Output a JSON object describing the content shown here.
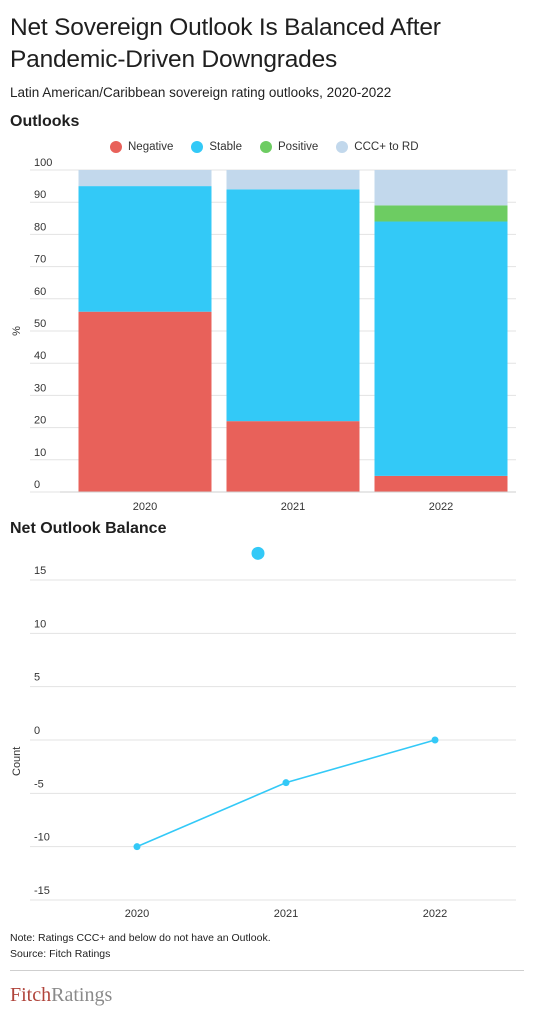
{
  "title": "Net Sovereign Outlook Is Balanced After Pandemic-Driven Downgrades",
  "subtitle": "Latin American/Caribbean sovereign rating outlooks, 2020-2022",
  "outlooks_title": "Outlooks",
  "balance_title": "Net Outlook Balance",
  "legend": [
    {
      "label": "Negative",
      "color": "#e8615a"
    },
    {
      "label": "Stable",
      "color": "#33c9f7"
    },
    {
      "label": "Positive",
      "color": "#6dcc62"
    },
    {
      "label": "CCC+ to RD",
      "color": "#c2d8ec"
    }
  ],
  "notes": {
    "note": "Note: Ratings CCC+ and below do not have an Outlook.",
    "source": "Source: Fitch Ratings"
  },
  "logo": {
    "part1": "Fitch",
    "part2": "Ratings"
  },
  "chart_data": [
    {
      "type": "bar",
      "stacked": true,
      "title": "Outlooks",
      "ylabel": "%",
      "xlabel": "",
      "ylim": [
        0,
        100
      ],
      "yticks": [
        0,
        10,
        20,
        30,
        40,
        50,
        60,
        70,
        80,
        90,
        100
      ],
      "grid": true,
      "legend_position": "top",
      "categories": [
        "2020",
        "2021",
        "2022"
      ],
      "series": [
        {
          "name": "Negative",
          "color": "#e8615a",
          "values": [
            56,
            22,
            5
          ]
        },
        {
          "name": "Stable",
          "color": "#33c9f7",
          "values": [
            39,
            72,
            79
          ]
        },
        {
          "name": "Positive",
          "color": "#6dcc62",
          "values": [
            0,
            0,
            5
          ]
        },
        {
          "name": "CCC+ to RD",
          "color": "#c2d8ec",
          "values": [
            5,
            6,
            11
          ]
        }
      ]
    },
    {
      "type": "line",
      "title": "Net Outlook Balance",
      "ylabel": "Count",
      "xlabel": "",
      "ylim": [
        -15,
        17.5
      ],
      "yticks": [
        15,
        10,
        5,
        0,
        -5,
        -10,
        -15
      ],
      "ytick_labels": [
        "15",
        "10",
        "5",
        "0",
        "-5",
        "-10",
        "-15"
      ],
      "grid": true,
      "categories": [
        "2020",
        "2021",
        "2022"
      ],
      "series": [
        {
          "values": [
            -10,
            -4,
            0
          ],
          "color": "#33c9f7"
        }
      ],
      "annotation_point": {
        "value": 17.5,
        "color": "#33c9f7"
      }
    }
  ]
}
